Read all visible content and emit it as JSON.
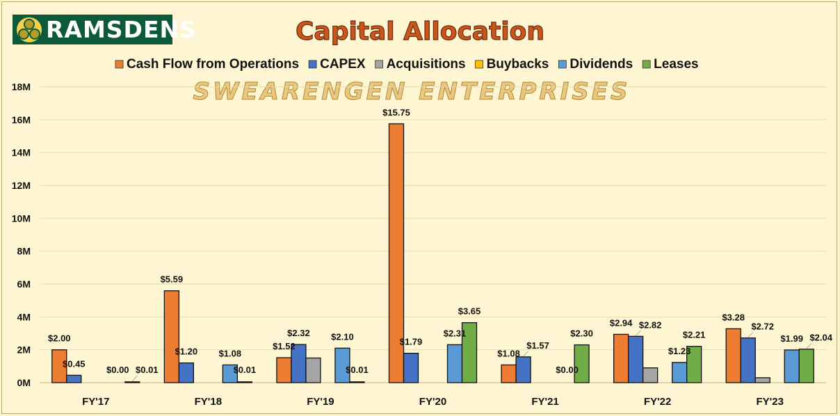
{
  "logo": {
    "text": "RAMSDENS",
    "icon": "three-balls-icon"
  },
  "watermark": "SWEARENGEN ENTERPRISES",
  "colors": {
    "background": "#fef6d3",
    "title": "#c9571c",
    "watermark": "#e9c77f",
    "cfo": "#ed7d31",
    "capex": "#4472c4",
    "acquisitions": "#a5a5a5",
    "buybacks": "#ffc000",
    "dividends": "#5b9bd5",
    "leases": "#70ad47"
  },
  "chart_data": {
    "type": "bar",
    "title": "Capital Allocation",
    "xlabel": "",
    "ylabel": "",
    "ylim": [
      0,
      18
    ],
    "yticks": [
      0,
      2,
      4,
      6,
      8,
      10,
      12,
      14,
      16,
      18
    ],
    "ytick_labels": [
      "0M",
      "2M",
      "4M",
      "6M",
      "8M",
      "10M",
      "12M",
      "14M",
      "16M",
      "18M"
    ],
    "grid": true,
    "legend_position": "top",
    "categories": [
      "FY'17",
      "FY'18",
      "FY'19",
      "FY'20",
      "FY'21",
      "FY'22",
      "FY'23"
    ],
    "series": [
      {
        "name": "Cash Flow from Operations",
        "color": "#ed7d31",
        "values": [
          2.0,
          5.59,
          1.52,
          15.75,
          1.08,
          2.94,
          3.28
        ],
        "labels": [
          "$2.00",
          "$5.59",
          "$1.52",
          "$15.75",
          "$1.08",
          "$2.94",
          "$3.28"
        ]
      },
      {
        "name": "CAPEX",
        "color": "#4472c4",
        "values": [
          0.45,
          1.2,
          2.32,
          1.79,
          1.57,
          2.82,
          2.72
        ],
        "labels": [
          "$0.45",
          "$1.20",
          "$2.32",
          "$1.79",
          "$1.57",
          "$2.82",
          "$2.72"
        ]
      },
      {
        "name": "Acquisitions",
        "color": "#a5a5a5",
        "values": [
          0,
          0,
          1.5,
          0,
          0,
          0.9,
          0.3
        ],
        "labels": [
          "",
          "",
          "",
          "",
          "",
          "",
          ""
        ]
      },
      {
        "name": "Buybacks",
        "color": "#ffc000",
        "values": [
          0,
          0,
          0,
          0,
          0,
          0,
          0
        ],
        "labels": [
          "",
          "",
          "",
          "",
          "",
          "",
          ""
        ]
      },
      {
        "name": "Dividends",
        "color": "#5b9bd5",
        "values": [
          0.0,
          1.08,
          2.1,
          2.31,
          0.0,
          1.23,
          1.99
        ],
        "labels": [
          "$0.00",
          "$1.08",
          "$2.10",
          "$2.31",
          "$0.00",
          "$1.23",
          "$1.99"
        ]
      },
      {
        "name": "Leases",
        "color": "#70ad47",
        "values": [
          0.01,
          0.01,
          0.01,
          3.65,
          2.3,
          2.21,
          2.04
        ],
        "labels": [
          "$0.01",
          "$0.01",
          "$0.01",
          "$3.65",
          "$2.30",
          "$2.21",
          "$2.04"
        ]
      }
    ]
  }
}
